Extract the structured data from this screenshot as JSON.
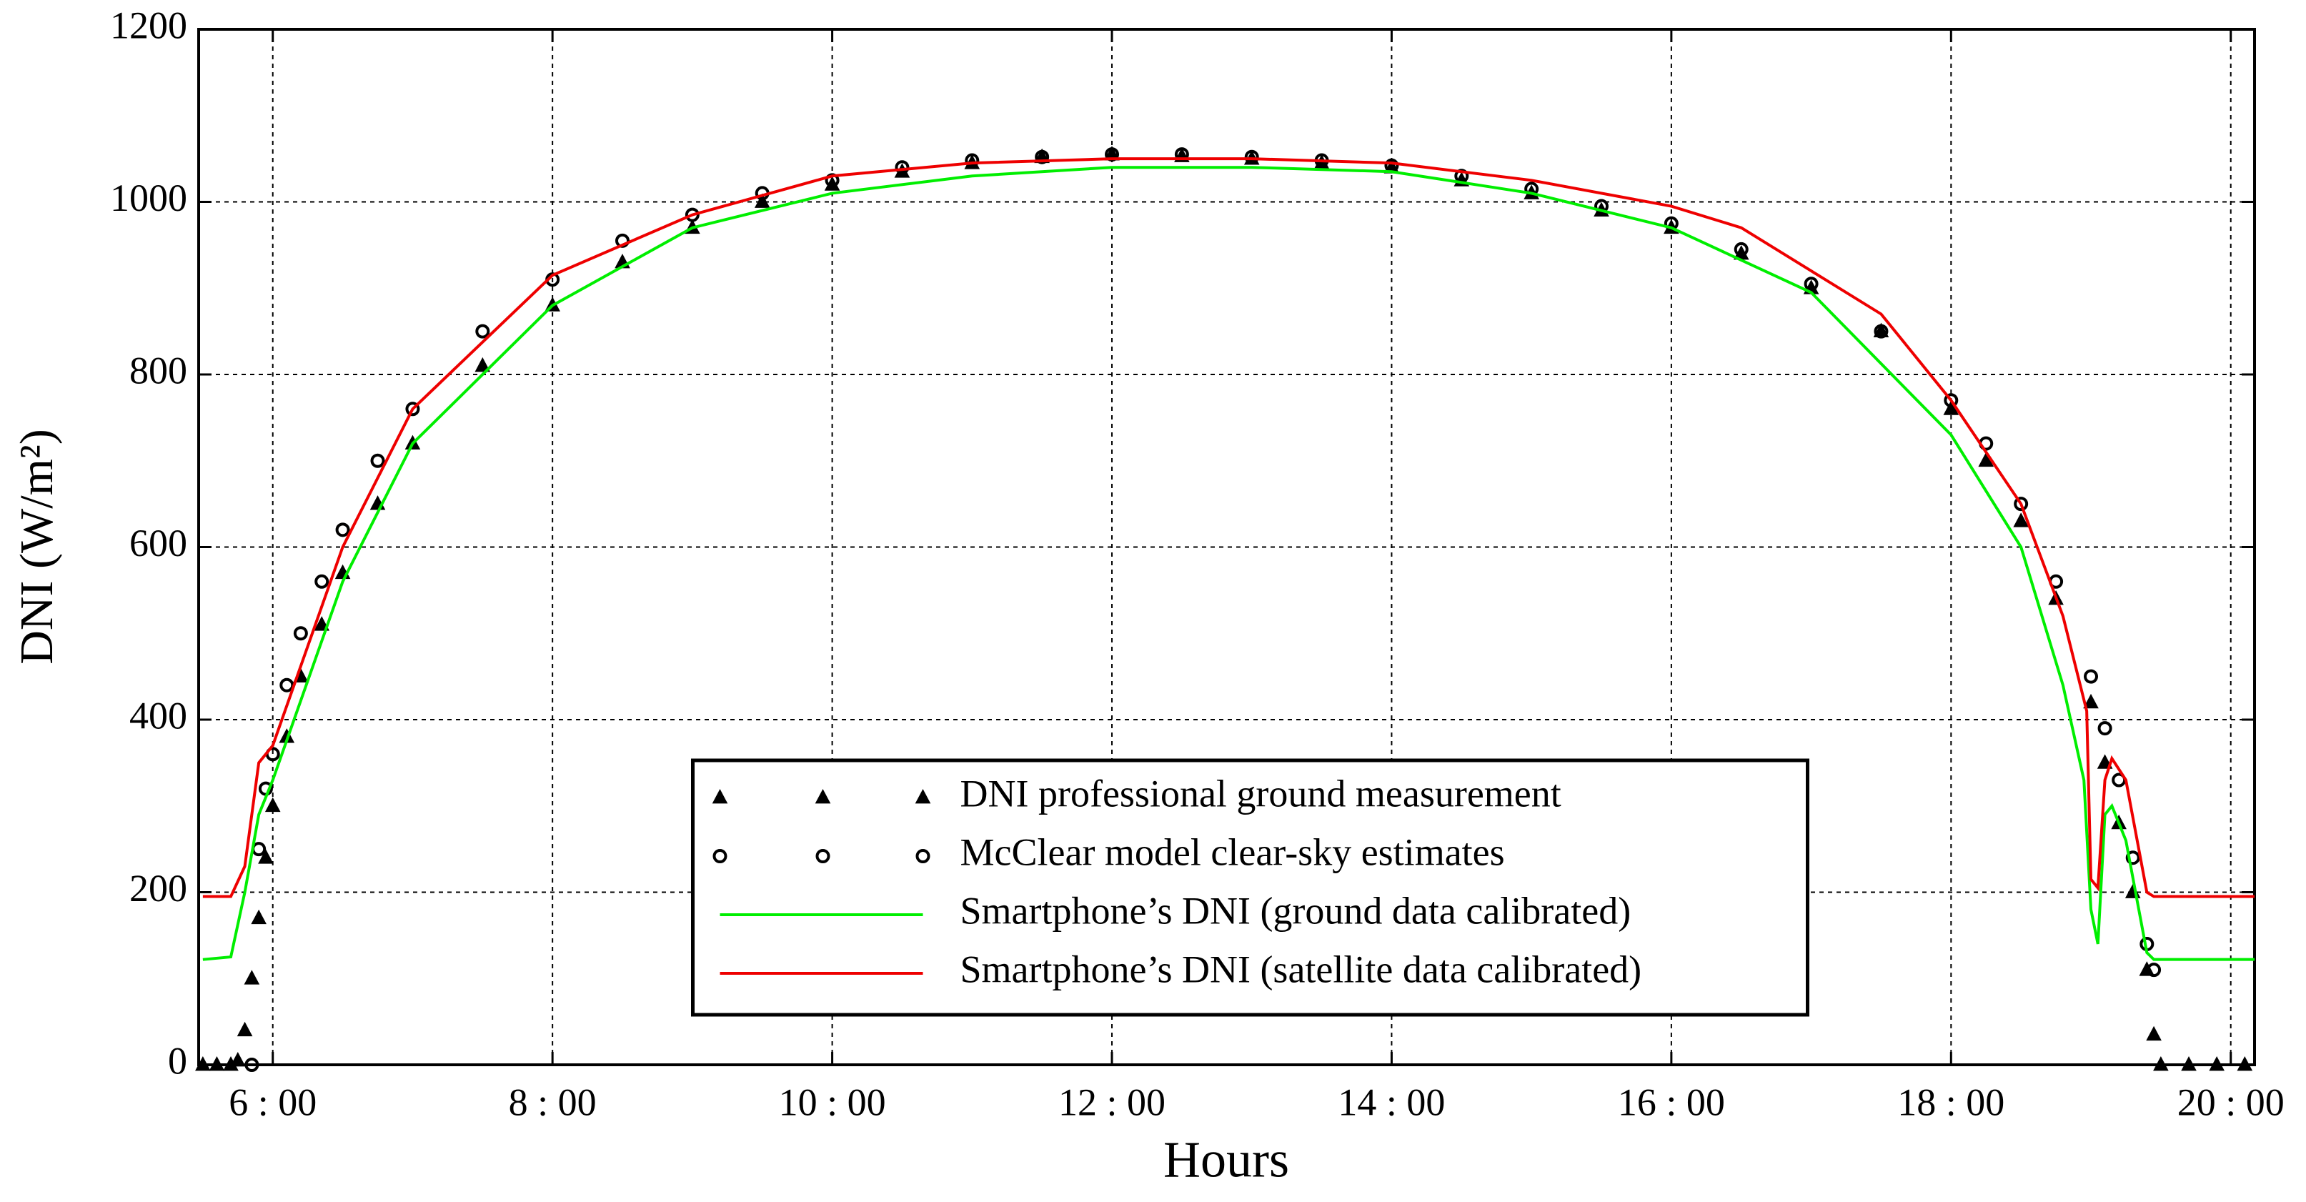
{
  "chart_data": {
    "type": "line",
    "xlabel": "Hours",
    "ylabel": "DNI (W/m²)",
    "xlim": [
      5.47,
      20.17
    ],
    "ylim": [
      0,
      1200
    ],
    "xticks": [
      {
        "value": 6,
        "label": "6 : 00"
      },
      {
        "value": 8,
        "label": "8 : 00"
      },
      {
        "value": 10,
        "label": "10 : 00"
      },
      {
        "value": 12,
        "label": "12 : 00"
      },
      {
        "value": 14,
        "label": "14 : 00"
      },
      {
        "value": 16,
        "label": "16 : 00"
      },
      {
        "value": 18,
        "label": "18 : 00"
      },
      {
        "value": 20,
        "label": "20 : 00"
      }
    ],
    "yticks": [
      0,
      200,
      400,
      600,
      800,
      1000,
      1200
    ],
    "grid": true,
    "legend": "lower center",
    "series": [
      {
        "name": "DNI professional ground measurement",
        "color": "#000000",
        "marker": "triangle",
        "x": [
          5.5,
          5.6,
          5.7,
          5.75,
          5.8,
          5.85,
          5.9,
          5.95,
          6.0,
          6.1,
          6.2,
          6.35,
          6.5,
          6.75,
          7,
          7.5,
          8,
          8.5,
          9,
          9.5,
          10,
          10.5,
          11,
          11.5,
          12,
          12.5,
          13,
          13.5,
          14,
          14.5,
          15,
          15.5,
          16,
          16.5,
          17,
          17.5,
          18,
          18.25,
          18.5,
          18.75,
          19,
          19.1,
          19.2,
          19.3,
          19.4,
          19.45,
          19.5,
          19.7,
          19.9,
          20.1
        ],
        "values": [
          0,
          0,
          0,
          5,
          40,
          100,
          170,
          240,
          300,
          380,
          450,
          510,
          570,
          650,
          720,
          810,
          880,
          930,
          970,
          1000,
          1020,
          1035,
          1045,
          1052,
          1055,
          1053,
          1050,
          1045,
          1040,
          1025,
          1010,
          990,
          970,
          940,
          900,
          850,
          760,
          700,
          630,
          540,
          420,
          350,
          280,
          200,
          110,
          35,
          0,
          0,
          0,
          0
        ]
      },
      {
        "name": "McClear model clear-sky estimates",
        "color": "#000000",
        "marker": "circle",
        "x": [
          5.85,
          5.9,
          5.95,
          6.0,
          6.1,
          6.2,
          6.35,
          6.5,
          6.75,
          7,
          7.5,
          8,
          8.5,
          9,
          9.5,
          10,
          10.5,
          11,
          11.5,
          12,
          12.5,
          13,
          13.5,
          14,
          14.5,
          15,
          15.5,
          16,
          16.5,
          17,
          17.5,
          18,
          18.25,
          18.5,
          18.75,
          19,
          19.1,
          19.2,
          19.3,
          19.4,
          19.45
        ],
        "values": [
          0,
          250,
          320,
          360,
          440,
          500,
          560,
          620,
          700,
          760,
          850,
          910,
          955,
          985,
          1010,
          1025,
          1040,
          1048,
          1052,
          1055,
          1055,
          1052,
          1048,
          1042,
          1030,
          1015,
          995,
          975,
          945,
          905,
          850,
          770,
          720,
          650,
          560,
          450,
          390,
          330,
          240,
          140,
          110
        ]
      },
      {
        "name": "Smartphone’s DNI (ground data calibrated)",
        "color": "#00ee00",
        "marker": "line",
        "x": [
          5.5,
          5.7,
          5.8,
          5.9,
          6.0,
          6.5,
          7,
          8,
          9,
          10,
          11,
          12,
          13,
          14,
          15,
          16,
          17,
          18,
          18.5,
          18.8,
          18.95,
          19.0,
          19.05,
          19.1,
          19.15,
          19.25,
          19.4,
          19.45,
          20.17
        ],
        "values": [
          122,
          125,
          200,
          290,
          330,
          560,
          720,
          880,
          970,
          1010,
          1030,
          1040,
          1040,
          1035,
          1010,
          970,
          895,
          730,
          600,
          440,
          330,
          180,
          140,
          290,
          300,
          260,
          130,
          122,
          122
        ]
      },
      {
        "name": "Smartphone’s DNI (satellite data calibrated)",
        "color": "#ee0000",
        "marker": "line",
        "x": [
          5.5,
          5.7,
          5.8,
          5.85,
          5.9,
          6.0,
          6.5,
          7,
          8,
          9,
          10,
          11,
          12,
          13,
          14,
          15,
          16,
          16.5,
          17,
          17.5,
          18,
          18.5,
          18.8,
          18.97,
          19.0,
          19.05,
          19.1,
          19.15,
          19.25,
          19.4,
          19.45,
          20.17
        ],
        "values": [
          195,
          195,
          230,
          290,
          350,
          370,
          600,
          760,
          915,
          985,
          1030,
          1045,
          1050,
          1050,
          1045,
          1025,
          995,
          970,
          920,
          870,
          770,
          650,
          520,
          410,
          215,
          205,
          330,
          355,
          330,
          200,
          195,
          195
        ]
      }
    ]
  }
}
